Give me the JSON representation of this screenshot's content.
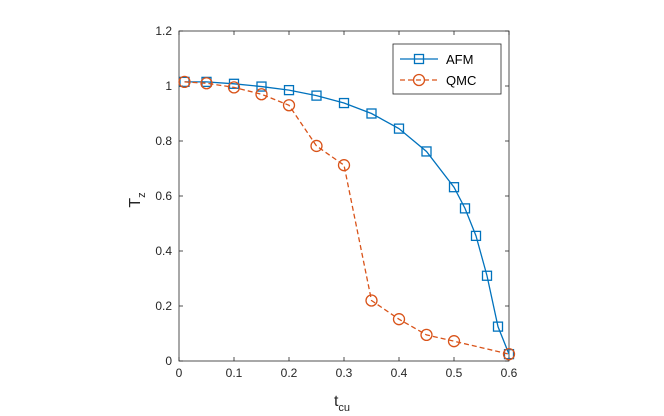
{
  "chart_data": {
    "type": "line",
    "title": "",
    "xlabel": {
      "main": "t",
      "sub": "cu"
    },
    "ylabel": {
      "main": "T",
      "sub": "z"
    },
    "xlim": [
      0,
      0.6
    ],
    "ylim": [
      0,
      1.2
    ],
    "xticks": [
      0,
      0.1,
      0.2,
      0.3,
      0.4,
      0.5,
      0.6
    ],
    "xtick_labels": [
      "0",
      "0.1",
      "0.2",
      "0.3",
      "0.4",
      "0.5",
      "0.6"
    ],
    "yticks": [
      0,
      0.2,
      0.4,
      0.6,
      0.8,
      1,
      1.2
    ],
    "ytick_labels": [
      "0",
      "0.2",
      "0.4",
      "0.6",
      "0.8",
      "1",
      "1.2"
    ],
    "grid": false,
    "legend_position": "top-right",
    "series": [
      {
        "name": "AFM",
        "color": "#0072BD",
        "line_style": "solid",
        "marker": "square",
        "x": [
          0.01,
          0.05,
          0.1,
          0.15,
          0.2,
          0.25,
          0.3,
          0.35,
          0.4,
          0.45,
          0.5,
          0.52,
          0.54,
          0.56,
          0.58,
          0.6
        ],
        "y": [
          1.015,
          1.015,
          1.008,
          0.998,
          0.985,
          0.965,
          0.938,
          0.9,
          0.845,
          0.762,
          0.632,
          0.555,
          0.455,
          0.31,
          0.125,
          0.025
        ]
      },
      {
        "name": "QMC",
        "color": "#D95319",
        "line_style": "dashed",
        "marker": "circle",
        "x": [
          0.01,
          0.05,
          0.1,
          0.15,
          0.2,
          0.25,
          0.3,
          0.35,
          0.4,
          0.45,
          0.5,
          0.6
        ],
        "y": [
          1.015,
          1.01,
          0.995,
          0.97,
          0.93,
          0.782,
          0.712,
          0.22,
          0.152,
          0.095,
          0.072,
          0.025
        ]
      }
    ]
  }
}
